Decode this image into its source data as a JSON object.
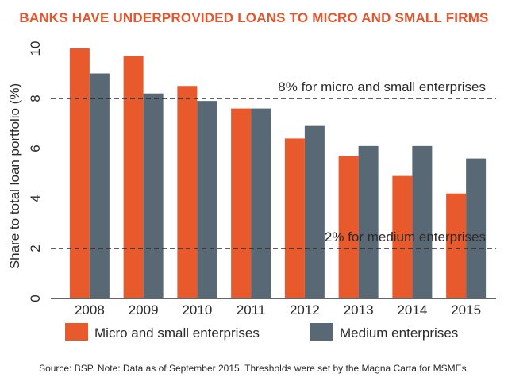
{
  "chart_data": {
    "type": "bar",
    "title": "BANKS HAVE UNDERPROVIDED LOANS TO MICRO AND SMALL FIRMS",
    "ylabel": "Share to total loan portfolio (%)",
    "xlabel": "",
    "ylim": [
      0,
      10
    ],
    "yticks": [
      "0",
      "2",
      "4",
      "6",
      "8",
      "10"
    ],
    "categories": [
      "2008",
      "2009",
      "2010",
      "2011",
      "2012",
      "2013",
      "2014",
      "2015"
    ],
    "series": [
      {
        "name": "Micro and small enterprises",
        "color": "#e8592b",
        "values": [
          10.0,
          9.7,
          8.5,
          7.6,
          6.4,
          5.7,
          4.9,
          4.2
        ]
      },
      {
        "name": "Medium enterprises",
        "color": "#586874",
        "values": [
          9.0,
          8.2,
          7.9,
          7.6,
          6.9,
          6.1,
          6.1,
          5.6
        ]
      }
    ],
    "thresholds": [
      {
        "value": 8,
        "label": "8% for micro and small enterprises"
      },
      {
        "value": 2,
        "label": "2% for medium enterprises"
      }
    ],
    "grid": false,
    "legend_position": "bottom"
  },
  "source": "Source: BSP. Note: Data as of September 2015. Thresholds were set by the Magna Carta for MSMEs."
}
